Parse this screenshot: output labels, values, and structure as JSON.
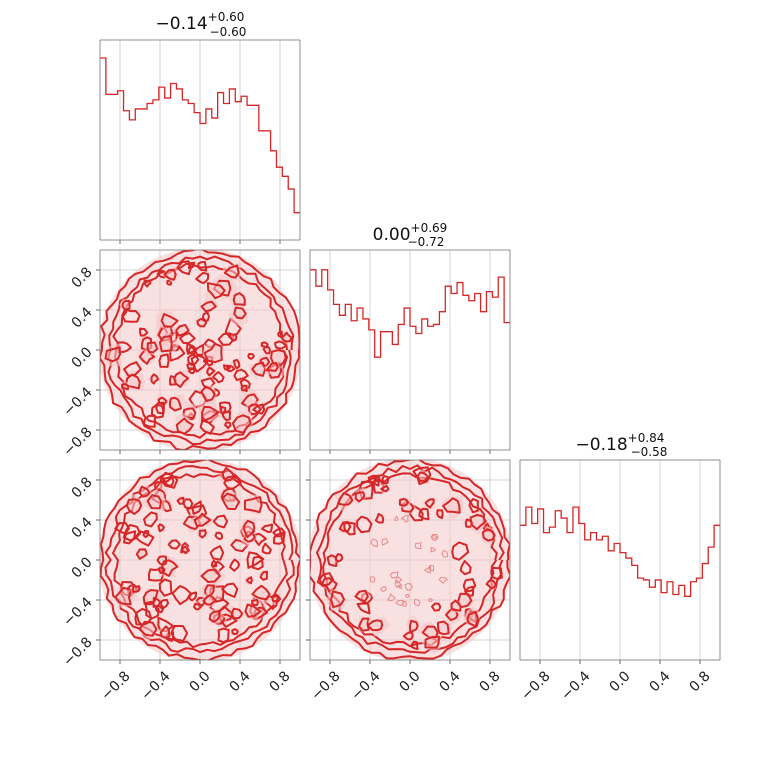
{
  "chart_data": {
    "type": "corner",
    "grid": true,
    "color": "#d62728",
    "axis_range": [
      -1.0,
      1.0
    ],
    "tick_values": [
      -0.8,
      -0.4,
      0.0,
      0.4,
      0.8
    ],
    "tick_labels": [
      "−0.8",
      "−0.4",
      "0.0",
      "0.4",
      "0.8"
    ],
    "titles": [
      {
        "median": "−0.14",
        "plus": "+0.60",
        "minus": "−0.60"
      },
      {
        "median": "0.00",
        "plus": "+0.69",
        "minus": "−0.72"
      },
      {
        "median": "−0.18",
        "plus": "+0.84",
        "minus": "−0.58"
      }
    ],
    "histograms": [
      [
        1.0,
        0.8,
        0.8,
        0.82,
        0.71,
        0.66,
        0.72,
        0.72,
        0.75,
        0.77,
        0.84,
        0.78,
        0.86,
        0.83,
        0.77,
        0.75,
        0.7,
        0.64,
        0.72,
        0.67,
        0.81,
        0.75,
        0.83,
        0.76,
        0.79,
        0.74,
        0.74,
        0.6,
        0.6,
        0.49,
        0.4,
        0.35,
        0.28,
        0.15
      ],
      [
        0.99,
        0.9,
        0.99,
        0.88,
        0.8,
        0.74,
        0.8,
        0.71,
        0.78,
        0.72,
        0.66,
        0.51,
        0.65,
        0.65,
        0.58,
        0.69,
        0.78,
        0.68,
        0.64,
        0.72,
        0.68,
        0.69,
        0.76,
        0.9,
        0.86,
        0.92,
        0.85,
        0.82,
        0.86,
        0.76,
        0.87,
        0.84,
        0.95,
        0.7
      ],
      [
        0.74,
        0.84,
        0.75,
        0.83,
        0.7,
        0.73,
        0.82,
        0.78,
        0.7,
        0.84,
        0.75,
        0.66,
        0.7,
        0.66,
        0.68,
        0.6,
        0.64,
        0.59,
        0.56,
        0.52,
        0.45,
        0.44,
        0.4,
        0.44,
        0.37,
        0.43,
        0.36,
        0.41,
        0.35,
        0.43,
        0.45,
        0.53,
        0.62,
        0.74
      ]
    ],
    "panels_2d": [
      {
        "x_param": 0,
        "y_param": 1
      },
      {
        "x_param": 0,
        "y_param": 2
      },
      {
        "x_param": 1,
        "y_param": 2
      }
    ]
  }
}
